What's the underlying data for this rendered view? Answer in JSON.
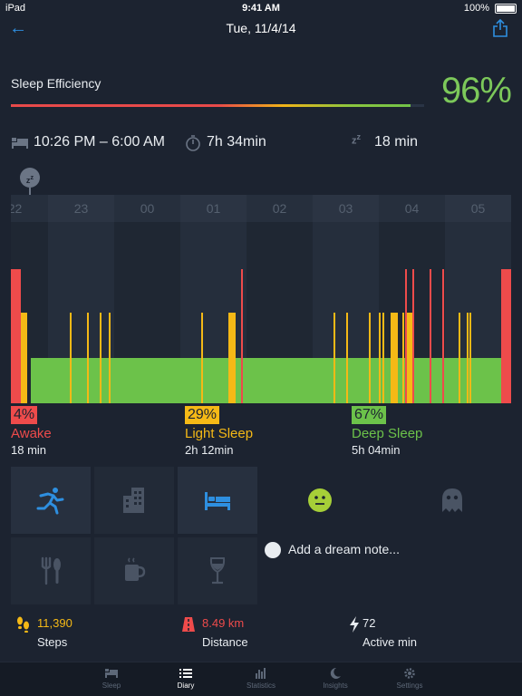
{
  "status_bar": {
    "carrier": "iPad",
    "time": "9:41 AM",
    "battery": "100%"
  },
  "nav": {
    "title": "Tue, 11/4/14",
    "back_icon": "back-arrow-icon",
    "share_icon": "share-icon"
  },
  "efficiency": {
    "label": "Sleep Efficiency",
    "value": "96%",
    "fraction": 0.96
  },
  "info": {
    "bedtime": "10:26 PM – 6:00 AM",
    "duration": "7h 34min",
    "latency": "18 min"
  },
  "chart_data": {
    "type": "bar",
    "hours": [
      "22",
      "23",
      "00",
      "01",
      "02",
      "03",
      "04",
      "05"
    ],
    "segments_note": "",
    "awake_marks": [
      0,
      1,
      254,
      435,
      443,
      462,
      476,
      541,
      544
    ],
    "light_marks": [
      10,
      14,
      65,
      84,
      98,
      108,
      210,
      240,
      243,
      356,
      370,
      395,
      406,
      410,
      419,
      423,
      432,
      437,
      441,
      494,
      503,
      506
    ],
    "colors": {
      "awake": "#ee4b4b",
      "light": "#f5b916",
      "deep": "#6cc24a"
    }
  },
  "legend": [
    {
      "pct": "4%",
      "name": "Awake",
      "dur": "18 min",
      "color": "#ee4b4b"
    },
    {
      "pct": "29%",
      "name": "Light Sleep",
      "dur": "2h 12min",
      "color": "#f5b916"
    },
    {
      "pct": "67%",
      "name": "Deep Sleep",
      "dur": "5h 04min",
      "color": "#6cc24a"
    }
  ],
  "tags": [
    {
      "name": "running-icon",
      "on": true
    },
    {
      "name": "city-icon",
      "on": false
    },
    {
      "name": "bed-icon",
      "on": true
    },
    {
      "name": "food-icon",
      "on": false
    },
    {
      "name": "coffee-icon",
      "on": false
    },
    {
      "name": "wine-icon",
      "on": false
    }
  ],
  "mood": {
    "icon": "smiley-icon",
    "color": "#a6cf38"
  },
  "dream": {
    "label": "Add a dream note..."
  },
  "activity": [
    {
      "value": "11,390",
      "label": "Steps",
      "color": "#f5b916"
    },
    {
      "value": "8.49 km",
      "label": "Distance",
      "color": "#ee4b4b"
    },
    {
      "value": "72",
      "label": "Active min",
      "color": "#e8ecf0"
    }
  ],
  "tabs": [
    {
      "label": "Sleep",
      "active": false
    },
    {
      "label": "Diary",
      "active": true
    },
    {
      "label": "Statistics",
      "active": false
    },
    {
      "label": "Insights",
      "active": false
    },
    {
      "label": "Settings",
      "active": false
    }
  ]
}
